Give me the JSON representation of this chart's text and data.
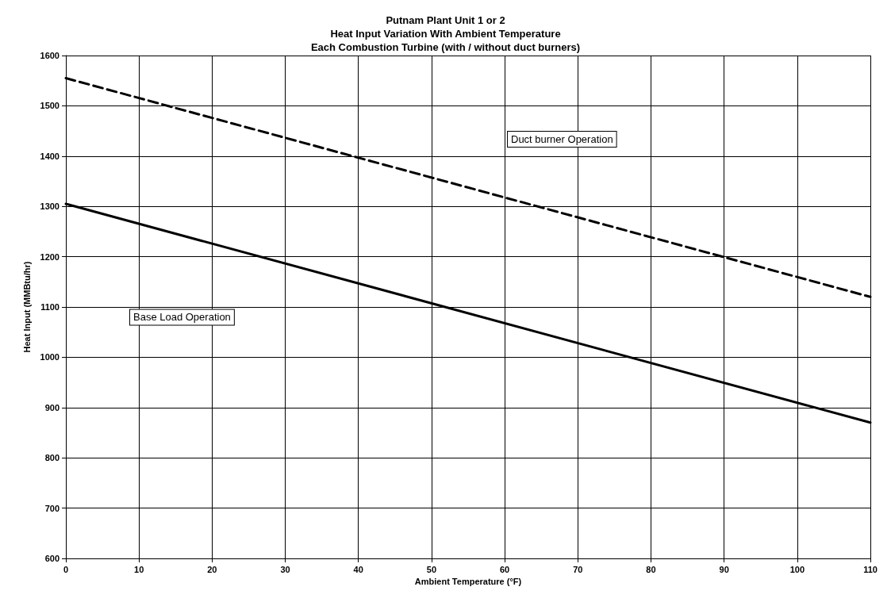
{
  "chart_data": {
    "type": "line",
    "title": "Putnam Plant Unit 1 or 2\nHeat Input Variation With Ambient Temperature\nEach Combustion Turbine (with / without duct burners)",
    "xlabel": "Ambient Temperature (°F)",
    "ylabel": "Heat Input (MMBtu/hr)",
    "x": [
      0,
      110
    ],
    "series": [
      {
        "name": "Duct burner Operation",
        "color": "#000000",
        "values": [
          1555,
          1120
        ],
        "line_style": "dashed"
      },
      {
        "name": "Base Load Operation",
        "color": "#000000",
        "values": [
          1305,
          870
        ],
        "line_style": "solid"
      }
    ],
    "xlim": [
      0,
      110
    ],
    "xticks": [
      0,
      10,
      20,
      30,
      40,
      50,
      60,
      70,
      80,
      90,
      100,
      110
    ],
    "ylim": [
      600,
      1600
    ],
    "yticks": [
      600,
      700,
      800,
      900,
      1000,
      1100,
      1200,
      1300,
      1400,
      1500,
      1600
    ],
    "grid": true,
    "legend": false,
    "marker": "none"
  }
}
